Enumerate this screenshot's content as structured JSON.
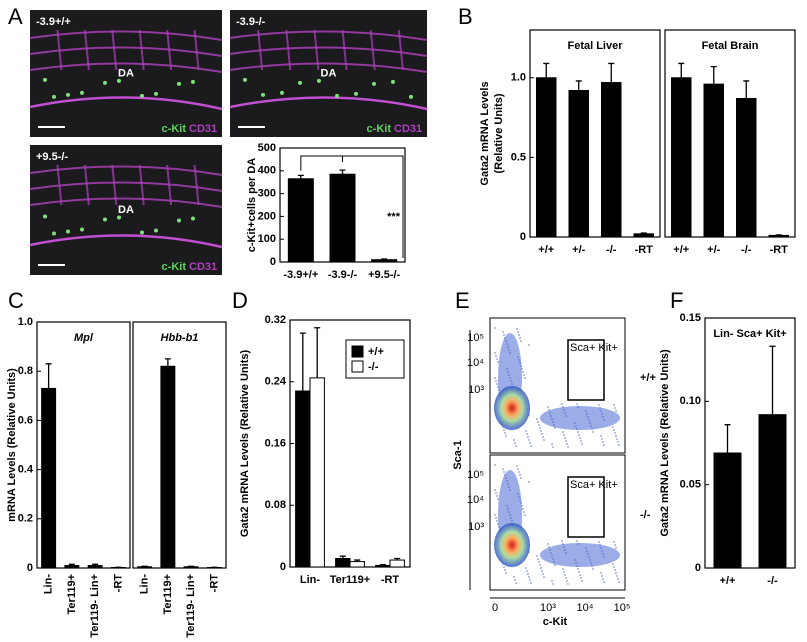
{
  "panel_labels": [
    "A",
    "B",
    "C",
    "D",
    "E",
    "F"
  ],
  "images": [
    {
      "genotype": "-3.9+/+",
      "region": "DA",
      "marker1": "c-Kit",
      "marker2": "CD31"
    },
    {
      "genotype": "-3.9-/-",
      "region": "DA",
      "marker1": "c-Kit",
      "marker2": "CD31"
    },
    {
      "genotype": "+9.5-/-",
      "region": "DA",
      "marker1": "c-Kit",
      "marker2": "CD31"
    }
  ],
  "flow": {
    "ylabel": "Sca-1",
    "xlabel": "c-Kit",
    "gate": "Sca+ Kit+",
    "genotypes": [
      "+/+",
      "-/-"
    ],
    "yticks": [
      "10⁵",
      "10⁴",
      "10³"
    ],
    "xticks": [
      "0",
      "10³",
      "10⁴",
      "10⁵"
    ]
  },
  "chart_data": [
    {
      "type": "bar",
      "ylabel": "c-Kit+cells per DA",
      "categories": [
        "-3.9+/+",
        "-3.9-/-",
        "+9.5-/-"
      ],
      "values": [
        365,
        385,
        10
      ],
      "errors": [
        15,
        18,
        3
      ],
      "color": "#000000",
      "annotation": "***",
      "ylim": [
        0,
        500
      ],
      "yticks": [
        0,
        100,
        200,
        300,
        400,
        500
      ]
    },
    {
      "type": "bar",
      "title": "Fetal Liver",
      "ylabel": [
        "Gata2 mRNA Levels",
        "(Relative Units)"
      ],
      "categories": [
        "+/+",
        "+/-",
        "-/-",
        "-RT"
      ],
      "values": [
        1.0,
        0.92,
        0.97,
        0.02
      ],
      "errors": [
        0.09,
        0.06,
        0.12,
        0.005
      ],
      "color": "#000000",
      "ylim": [
        0,
        1.3
      ],
      "yticks": [
        0,
        0.5,
        {
          "value": 1,
          "label": "1.0"
        }
      ]
    },
    {
      "type": "bar",
      "title": "Fetal Brain",
      "categories": [
        "+/+",
        "+/-",
        "-/-",
        "-RT"
      ],
      "values": [
        1.0,
        0.96,
        0.87,
        0.01
      ],
      "errors": [
        0.09,
        0.11,
        0.11,
        0.003
      ],
      "color": "#000000",
      "ylim": [
        0,
        1.3
      ]
    },
    {
      "type": "bar",
      "title": "Mpl",
      "ylabel": "mRNA Levels (Relative Units)",
      "categories": [
        "Lin-",
        "Ter119+",
        "Ter119- Lin+",
        "-RT"
      ],
      "values": [
        0.73,
        0.01,
        0.01,
        0.002
      ],
      "errors": [
        0.1,
        0.005,
        0.005,
        0.001
      ],
      "color": "#000000",
      "ylim": [
        0,
        1.0
      ],
      "yticks": [
        0,
        0.2,
        0.4,
        0.6,
        0.8,
        {
          "value": 1,
          "label": "1.0"
        }
      ]
    },
    {
      "type": "bar",
      "title": "Hbb-b1",
      "categories": [
        "Lin-",
        "Ter119+",
        "Ter119- Lin+",
        "-RT"
      ],
      "values": [
        0.005,
        0.82,
        0.005,
        0.002
      ],
      "errors": [
        0.002,
        0.03,
        0.002,
        0.001
      ],
      "color": "#000000",
      "ylim": [
        0,
        1.0
      ]
    },
    {
      "type": "bar",
      "ylabel": "Gata2 mRNA Levels (Relative Units)",
      "categories": [
        "Lin-",
        "Ter119+",
        "-RT"
      ],
      "series": [
        {
          "name": "+/+",
          "color": "#000000",
          "values": [
            0.228,
            0.011,
            0.002
          ],
          "errors": [
            0.075,
            0.003,
            0.001
          ]
        },
        {
          "name": "-/-",
          "color": "#ffffff",
          "values": [
            0.245,
            0.007,
            0.009
          ],
          "errors": [
            0.065,
            0.002,
            0.002
          ]
        }
      ],
      "ylim": [
        0,
        0.32
      ],
      "yticks": [
        0,
        0.08,
        0.16,
        0.24,
        0.32
      ],
      "legend": "upper right"
    },
    {
      "type": "bar",
      "title": "Lin- Sca+ Kit+",
      "ylabel": "Gata2 mRNA Levels (Relative Units)",
      "categories": [
        "+/+",
        "-/-"
      ],
      "values": [
        0.069,
        0.092
      ],
      "errors": [
        0.017,
        0.041
      ],
      "color": "#000000",
      "ylim": [
        0,
        0.15
      ],
      "yticks": [
        0,
        0.05,
        {
          "value": 0.1,
          "label": "0.10"
        },
        0.15
      ]
    }
  ]
}
